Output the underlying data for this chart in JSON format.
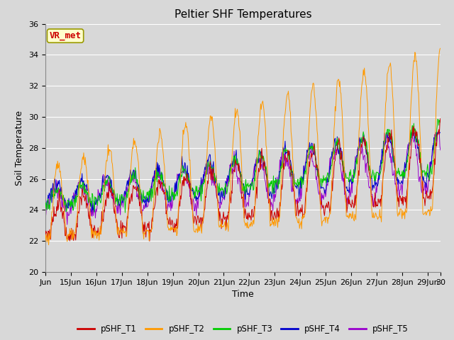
{
  "title": "Peltier SHF Temperatures",
  "xlabel": "Time",
  "ylabel": "Soil Temperature",
  "ylim": [
    20,
    36
  ],
  "yticks": [
    20,
    22,
    24,
    26,
    28,
    30,
    32,
    34,
    36
  ],
  "xtick_labels": [
    "Jun",
    "15Jun",
    "16Jun",
    "17Jun",
    "18Jun",
    "19Jun",
    "20Jun",
    "21Jun",
    "22Jun",
    "23Jun",
    "24Jun",
    "25Jun",
    "26Jun",
    "27Jun",
    "28Jun",
    "29Jun",
    "30"
  ],
  "colors": {
    "T1": "#cc0000",
    "T2": "#ff9900",
    "T3": "#00cc00",
    "T4": "#0000cc",
    "T5": "#9900cc"
  },
  "legend_labels": [
    "pSHF_T1",
    "pSHF_T2",
    "pSHF_T3",
    "pSHF_T4",
    "pSHF_T5"
  ],
  "annotation_text": "VR_met",
  "annotation_color": "#cc0000",
  "annotation_bg": "#ffffcc",
  "background_color": "#d8d8d8",
  "title_fontsize": 11,
  "axis_fontsize": 9,
  "tick_fontsize": 8
}
